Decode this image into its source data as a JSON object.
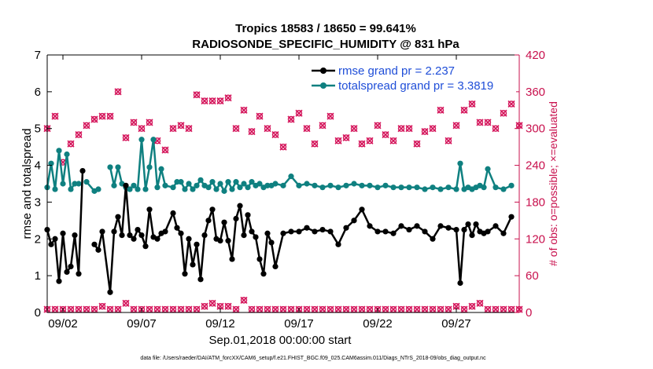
{
  "chart_data": {
    "type": "line",
    "title": "Tropics 18583 / 18650 = 99.641%",
    "subtitle": "RADIOSONDE_SPECIFIC_HUMIDITY @ 831 hPa",
    "xlabel": "Sep.01,2018 00:00:00 start",
    "ylabel": "rmse and totalspread",
    "y2label": "# of obs: o=possible; ×=evaluated",
    "xlim": [
      1,
      31
    ],
    "ylim": [
      0,
      7
    ],
    "y2lim": [
      0,
      420
    ],
    "xticks": [
      {
        "x": 2,
        "label": "09/02"
      },
      {
        "x": 7,
        "label": "09/07"
      },
      {
        "x": 12,
        "label": "09/12"
      },
      {
        "x": 17,
        "label": "09/17"
      },
      {
        "x": 22,
        "label": "09/22"
      },
      {
        "x": 27,
        "label": "09/27"
      }
    ],
    "yticks": [
      "0",
      "1",
      "2",
      "3",
      "4",
      "5",
      "6",
      "7"
    ],
    "y2ticks": [
      "0",
      "60",
      "120",
      "180",
      "240",
      "300",
      "360",
      "420"
    ],
    "footer": "data file: /Users/raeder/DAI/ATM_forcXX/CAM6_setup/f.e21.FHIST_BGC.f09_025.CAM6assim.011/Diags_NTrS_2018-09/obs_diag_output.nc",
    "colors": {
      "rmse": "#000000",
      "spread": "#0f8080",
      "obs": "#d4145a",
      "legend_text": "#1f4ed8",
      "right_axis": "#c8104d"
    },
    "series": [
      {
        "name": "rmse grand pr = 2.237",
        "key": "rmse",
        "x": [
          1,
          1.25,
          1.5,
          1.75,
          2,
          2.25,
          2.5,
          2.75,
          3,
          3.25,
          3.5,
          4,
          4.25,
          4.5,
          5,
          5.25,
          5.5,
          5.75,
          6,
          6.25,
          6.5,
          6.75,
          7,
          7.25,
          7.5,
          7.75,
          8,
          8.25,
          8.5,
          9,
          9.25,
          9.5,
          9.75,
          10,
          10.25,
          10.5,
          10.75,
          11,
          11.25,
          11.5,
          11.75,
          12,
          12.25,
          12.5,
          12.75,
          13,
          13.25,
          13.5,
          13.75,
          14,
          14.25,
          14.5,
          14.75,
          15,
          15.25,
          15.5,
          16,
          16.5,
          17,
          17.5,
          18,
          18.5,
          19,
          19.5,
          20,
          20.5,
          21,
          21.5,
          22,
          22.5,
          23,
          23.5,
          24,
          24.5,
          25,
          25.5,
          26,
          26.5,
          27,
          27.25,
          27.5,
          27.75,
          28,
          28.25,
          28.5,
          28.75,
          29,
          29.5,
          30,
          30.5
        ],
        "values": [
          2.25,
          1.85,
          2.0,
          0.85,
          2.15,
          1.1,
          1.25,
          2.1,
          1.05,
          3.85,
          null,
          1.85,
          1.7,
          2.2,
          0.55,
          2.2,
          2.6,
          2.1,
          3.45,
          2.1,
          2.0,
          2.25,
          2.1,
          1.8,
          2.8,
          2.05,
          2.0,
          2.15,
          2.2,
          2.7,
          2.3,
          2.15,
          1.05,
          2.0,
          1.3,
          1.85,
          0.9,
          2.1,
          2.5,
          2.8,
          2.0,
          1.95,
          2.45,
          1.95,
          1.45,
          2.55,
          2.9,
          2.1,
          2.65,
          2.2,
          2.05,
          1.45,
          1.05,
          2.15,
          1.9,
          1.25,
          2.15,
          2.2,
          2.2,
          2.3,
          2.2,
          2.25,
          2.2,
          1.85,
          2.3,
          2.5,
          2.8,
          2.35,
          2.2,
          2.2,
          2.15,
          2.35,
          2.25,
          2.35,
          2.2,
          2.0,
          2.35,
          2.3,
          2.25,
          0.8,
          2.25,
          2.4,
          2.1,
          2.4,
          2.2,
          2.15,
          2.2,
          2.35,
          2.15,
          2.6
        ]
      },
      {
        "name": "totalspread grand pr = 3.3819",
        "key": "spread",
        "x": [
          1,
          1.25,
          1.5,
          1.75,
          2,
          2.25,
          2.5,
          2.75,
          3,
          3.25,
          3.5,
          4,
          4.25,
          4.5,
          5,
          5.25,
          5.5,
          5.75,
          6,
          6.25,
          6.5,
          6.75,
          7,
          7.25,
          7.5,
          7.75,
          8,
          8.25,
          8.5,
          9,
          9.25,
          9.5,
          9.75,
          10,
          10.25,
          10.5,
          10.75,
          11,
          11.25,
          11.5,
          11.75,
          12,
          12.25,
          12.5,
          12.75,
          13,
          13.25,
          13.5,
          13.75,
          14,
          14.25,
          14.5,
          14.75,
          15,
          15.25,
          15.5,
          16,
          16.5,
          17,
          17.5,
          18,
          18.5,
          19,
          19.5,
          20,
          20.5,
          21,
          21.5,
          22,
          22.5,
          23,
          23.5,
          24,
          24.5,
          25,
          25.5,
          26,
          26.5,
          27,
          27.25,
          27.5,
          27.75,
          28,
          28.25,
          28.5,
          28.75,
          29,
          29.5,
          30,
          30.5
        ],
        "values": [
          3.4,
          4.05,
          3.35,
          4.4,
          3.5,
          4.3,
          3.35,
          3.5,
          3.5,
          null,
          3.55,
          3.3,
          3.35,
          null,
          3.95,
          3.45,
          3.95,
          3.5,
          3.4,
          3.35,
          3.45,
          3.35,
          4.7,
          3.35,
          3.95,
          4.7,
          3.4,
          3.9,
          3.45,
          3.4,
          3.55,
          3.55,
          3.35,
          3.5,
          3.35,
          3.45,
          3.6,
          3.45,
          3.4,
          3.55,
          3.35,
          3.5,
          3.3,
          3.55,
          3.35,
          3.55,
          3.4,
          3.5,
          3.4,
          3.55,
          3.45,
          3.5,
          3.4,
          3.45,
          3.45,
          3.5,
          3.45,
          3.7,
          3.45,
          3.5,
          3.45,
          3.4,
          3.45,
          3.4,
          3.45,
          3.5,
          3.45,
          3.45,
          3.4,
          3.45,
          3.4,
          3.4,
          3.4,
          3.4,
          3.35,
          3.4,
          3.35,
          3.4,
          3.35,
          4.05,
          3.35,
          3.4,
          3.35,
          3.4,
          3.45,
          3.4,
          3.9,
          3.4,
          3.35,
          3.45
        ]
      },
      {
        "name": "obs possible",
        "key": "obs",
        "x": [
          1,
          1.5,
          2,
          2.5,
          3,
          3.5,
          4,
          4.5,
          5,
          5.5,
          6,
          6.5,
          7,
          7.5,
          8,
          8.5,
          9,
          9.5,
          10,
          10.5,
          11,
          11.5,
          12,
          12.5,
          13,
          13.5,
          14,
          14.5,
          15,
          15.5,
          16,
          16.5,
          17,
          17.5,
          18,
          18.5,
          19,
          19.5,
          20,
          20.5,
          21,
          21.5,
          22,
          22.5,
          23,
          23.5,
          24,
          24.5,
          25,
          25.5,
          26,
          26.5,
          27,
          27.5,
          28,
          28.5,
          29,
          29.5,
          30,
          30.5,
          31
        ],
        "values": [
          300,
          320,
          245,
          275,
          290,
          305,
          315,
          320,
          320,
          360,
          285,
          310,
          300,
          310,
          280,
          265,
          300,
          305,
          300,
          355,
          345,
          345,
          345,
          350,
          300,
          330,
          295,
          320,
          300,
          290,
          270,
          315,
          325,
          300,
          275,
          305,
          320,
          280,
          285,
          300,
          275,
          280,
          305,
          290,
          280,
          300,
          300,
          275,
          295,
          300,
          330,
          280,
          305,
          330,
          340,
          310,
          310,
          300,
          325,
          340,
          305
        ],
        "counts_low": [
          5,
          5,
          5,
          5,
          5,
          5,
          5,
          10,
          5,
          5,
          15,
          5,
          5,
          5,
          5,
          5,
          5,
          5,
          5,
          5,
          10,
          15,
          10,
          10,
          5,
          20,
          5,
          5,
          5,
          5,
          5,
          5,
          5,
          5,
          5,
          5,
          5,
          5,
          5,
          5,
          5,
          5,
          5,
          5,
          5,
          5,
          5,
          5,
          5,
          5,
          5,
          5,
          10,
          5,
          10,
          15,
          5,
          5,
          5,
          5,
          5
        ]
      }
    ],
    "legend_position": "top-right"
  }
}
